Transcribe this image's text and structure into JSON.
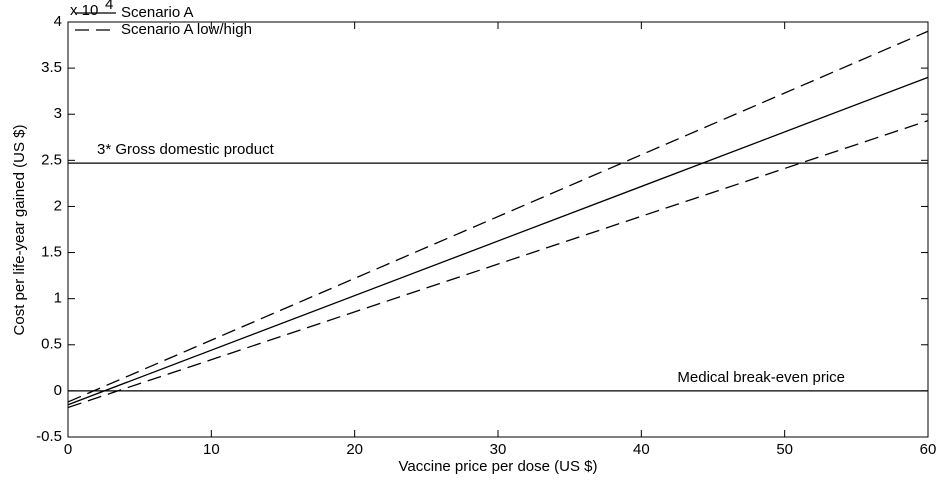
{
  "chart_data": {
    "type": "line",
    "y_scale_label": "x 10",
    "y_scale_exponent": "4",
    "xlabel": "Vaccine price per dose (US $)",
    "ylabel": "Cost per life-year gained (US $)",
    "x": [
      0,
      60
    ],
    "series": [
      {
        "name": "Scenario A",
        "color": "#000000",
        "dash": false,
        "lines": [
          [
            -0.15,
            3.4
          ]
        ]
      },
      {
        "name": "Scenario A low/high",
        "color": "#000000",
        "dash": true,
        "lines": [
          [
            -0.12,
            3.9
          ],
          [
            -0.18,
            2.93
          ]
        ]
      }
    ],
    "reference_lines": [
      {
        "value": 2.47,
        "label": "3* Gross domestic product"
      },
      {
        "value": 0,
        "label": "Medical break-even price"
      }
    ],
    "xlim": [
      0,
      60
    ],
    "xticks": [
      0,
      10,
      20,
      30,
      40,
      50,
      60
    ],
    "ylim": [
      -0.5,
      4
    ],
    "yticks": [
      -0.5,
      0,
      0.5,
      1,
      1.5,
      2,
      2.5,
      3,
      3.5,
      4
    ],
    "legend": "upper-left"
  }
}
